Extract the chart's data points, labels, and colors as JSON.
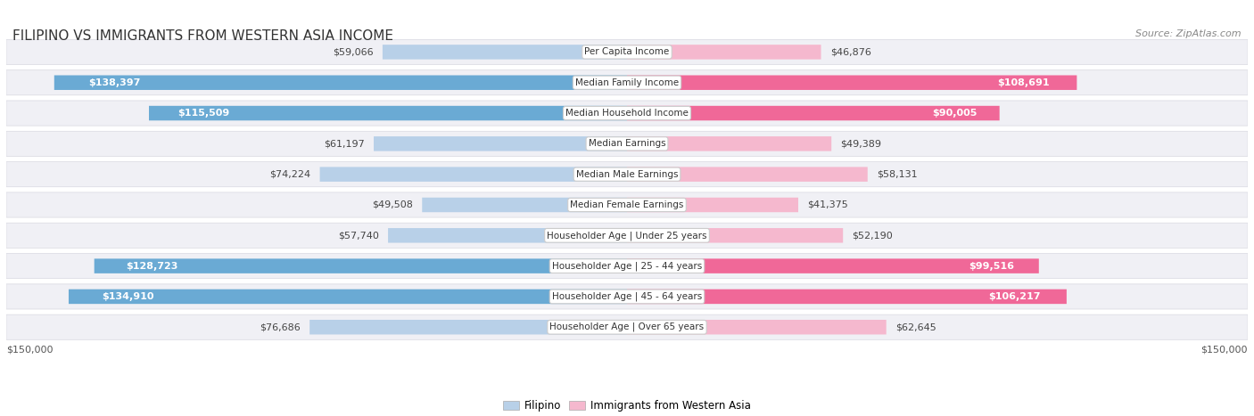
{
  "title": "FILIPINO VS IMMIGRANTS FROM WESTERN ASIA INCOME",
  "source": "Source: ZipAtlas.com",
  "categories": [
    "Per Capita Income",
    "Median Family Income",
    "Median Household Income",
    "Median Earnings",
    "Median Male Earnings",
    "Median Female Earnings",
    "Householder Age | Under 25 years",
    "Householder Age | 25 - 44 years",
    "Householder Age | 45 - 64 years",
    "Householder Age | Over 65 years"
  ],
  "filipino_values": [
    59066,
    138397,
    115509,
    61197,
    74224,
    49508,
    57740,
    128723,
    134910,
    76686
  ],
  "western_asia_values": [
    46876,
    108691,
    90005,
    49389,
    58131,
    41375,
    52190,
    99516,
    106217,
    62645
  ],
  "max_value": 150000,
  "filipino_color_light": "#b8d0e8",
  "filipino_color_dark": "#6aaad4",
  "western_asia_color_light": "#f5b8ce",
  "western_asia_color_dark": "#f06898",
  "fil_dark_threshold": 80000,
  "wa_dark_threshold": 80000,
  "row_bg_color": "#f0f0f5",
  "row_border_color": "#d8d8e0",
  "label_box_color": "#ffffff",
  "label_box_edge": "#cccccc",
  "title_fontsize": 11,
  "source_fontsize": 8,
  "bar_label_fontsize": 8,
  "cat_label_fontsize": 7.5,
  "tick_fontsize": 8,
  "tick_label": "$150,000",
  "legend_filipino": "Filipino",
  "legend_western_asia": "Immigrants from Western Asia",
  "background_color": "#ffffff"
}
